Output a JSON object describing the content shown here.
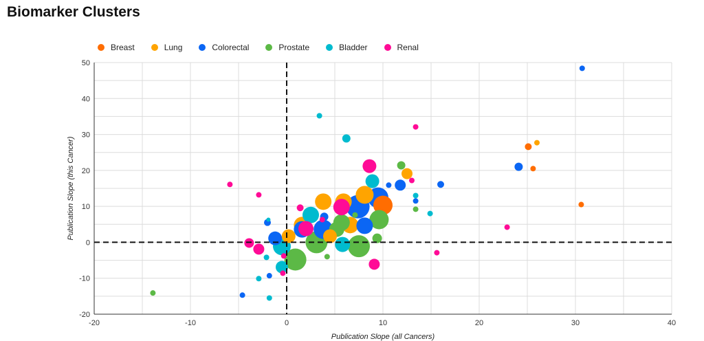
{
  "chart_data": {
    "type": "scatter",
    "title": "Biomarker Clusters",
    "xlabel": "Publication Slope (all Cancers)",
    "ylabel": "Publication Slope (this Cancer)",
    "xlim": [
      -20,
      40
    ],
    "ylim": [
      -20,
      50
    ],
    "xticks": [
      -20,
      -10,
      0,
      10,
      20,
      30,
      40
    ],
    "yticks": [
      -20,
      -10,
      0,
      10,
      20,
      30,
      40,
      50
    ],
    "grid": true,
    "legend_position": "top-left",
    "reference_lines": {
      "x": 0,
      "y": 0,
      "style": "dashed"
    },
    "series": [
      {
        "name": "Breast",
        "color": "#ff6d01",
        "points": [
          {
            "x": 25.1,
            "y": 26.6,
            "size": 5
          },
          {
            "x": 25.6,
            "y": 20.5,
            "size": 4
          },
          {
            "x": 30.6,
            "y": 10.5,
            "size": 4
          },
          {
            "x": 10.0,
            "y": 10.3,
            "size": 14
          }
        ]
      },
      {
        "name": "Lung",
        "color": "#ffa400",
        "points": [
          {
            "x": 26.0,
            "y": 27.7,
            "size": 4
          },
          {
            "x": 12.5,
            "y": 19.1,
            "size": 8
          },
          {
            "x": 8.1,
            "y": 13.2,
            "size": 13
          },
          {
            "x": 5.9,
            "y": 11.3,
            "size": 12
          },
          {
            "x": 3.8,
            "y": 11.3,
            "size": 12
          },
          {
            "x": 6.6,
            "y": 4.8,
            "size": 12
          },
          {
            "x": 1.6,
            "y": 4.8,
            "size": 12
          },
          {
            "x": 4.5,
            "y": 1.7,
            "size": 10
          },
          {
            "x": 0.2,
            "y": 1.7,
            "size": 10
          }
        ]
      },
      {
        "name": "Colorectal",
        "color": "#0b66f4",
        "points": [
          {
            "x": 30.7,
            "y": 48.4,
            "size": 4
          },
          {
            "x": 24.1,
            "y": 21.0,
            "size": 6
          },
          {
            "x": 16.0,
            "y": 16.1,
            "size": 5
          },
          {
            "x": 11.8,
            "y": 15.9,
            "size": 8
          },
          {
            "x": 10.6,
            "y": 15.9,
            "size": 4
          },
          {
            "x": 13.4,
            "y": 11.5,
            "size": 4
          },
          {
            "x": 9.5,
            "y": 12.4,
            "size": 15
          },
          {
            "x": 7.4,
            "y": 9.9,
            "size": 17
          },
          {
            "x": 8.1,
            "y": 4.6,
            "size": 12
          },
          {
            "x": 3.9,
            "y": 7.1,
            "size": 6
          },
          {
            "x": 1.6,
            "y": 3.6,
            "size": 12
          },
          {
            "x": 3.8,
            "y": 3.6,
            "size": 14
          },
          {
            "x": -2.0,
            "y": 5.5,
            "size": 5
          },
          {
            "x": -1.2,
            "y": 1.1,
            "size": 10
          },
          {
            "x": -1.8,
            "y": -9.3,
            "size": 4
          },
          {
            "x": -4.6,
            "y": -14.7,
            "size": 4
          }
        ]
      },
      {
        "name": "Prostate",
        "color": "#5cb946",
        "points": [
          {
            "x": 11.9,
            "y": 21.4,
            "size": 6
          },
          {
            "x": 13.4,
            "y": 9.2,
            "size": 4
          },
          {
            "x": 9.6,
            "y": 6.3,
            "size": 14
          },
          {
            "x": 5.7,
            "y": 5.5,
            "size": 12
          },
          {
            "x": 5.2,
            "y": 3.6,
            "size": 11
          },
          {
            "x": 7.1,
            "y": 7.6,
            "size": 4
          },
          {
            "x": 3.1,
            "y": 0.0,
            "size": 16
          },
          {
            "x": 7.5,
            "y": -1.1,
            "size": 16
          },
          {
            "x": 9.4,
            "y": 1.1,
            "size": 7
          },
          {
            "x": 4.2,
            "y": -4.0,
            "size": 4
          },
          {
            "x": 0.9,
            "y": -4.8,
            "size": 16
          },
          {
            "x": -13.9,
            "y": -14.1,
            "size": 4
          }
        ]
      },
      {
        "name": "Bladder",
        "color": "#00bbcf",
        "points": [
          {
            "x": 3.4,
            "y": 35.2,
            "size": 4
          },
          {
            "x": 6.2,
            "y": 28.9,
            "size": 6
          },
          {
            "x": 13.4,
            "y": 13.0,
            "size": 4
          },
          {
            "x": 14.9,
            "y": 8.0,
            "size": 4
          },
          {
            "x": 8.9,
            "y": 17.0,
            "size": 10
          },
          {
            "x": 2.5,
            "y": 7.6,
            "size": 12
          },
          {
            "x": 5.8,
            "y": -0.6,
            "size": 11
          },
          {
            "x": -1.9,
            "y": 6.3,
            "size": 3
          },
          {
            "x": -0.5,
            "y": -1.1,
            "size": 13
          },
          {
            "x": -2.1,
            "y": -4.2,
            "size": 4
          },
          {
            "x": -0.5,
            "y": -6.9,
            "size": 9
          },
          {
            "x": -2.9,
            "y": -10.1,
            "size": 4
          },
          {
            "x": -1.8,
            "y": -15.5,
            "size": 4
          }
        ]
      },
      {
        "name": "Renal",
        "color": "#ff0b96",
        "points": [
          {
            "x": 13.4,
            "y": 32.1,
            "size": 4
          },
          {
            "x": 13.0,
            "y": 17.2,
            "size": 4
          },
          {
            "x": 22.9,
            "y": 4.2,
            "size": 4
          },
          {
            "x": 15.6,
            "y": -2.9,
            "size": 4
          },
          {
            "x": 8.6,
            "y": 21.2,
            "size": 10
          },
          {
            "x": 5.7,
            "y": 9.8,
            "size": 12
          },
          {
            "x": 3.7,
            "y": 6.3,
            "size": 4
          },
          {
            "x": 1.4,
            "y": 9.6,
            "size": 5
          },
          {
            "x": 2.0,
            "y": 3.8,
            "size": 11
          },
          {
            "x": 9.1,
            "y": -6.1,
            "size": 8
          },
          {
            "x": -5.9,
            "y": 16.1,
            "size": 4
          },
          {
            "x": -2.9,
            "y": 13.2,
            "size": 4
          },
          {
            "x": -3.9,
            "y": -0.2,
            "size": 7
          },
          {
            "x": -2.9,
            "y": -1.9,
            "size": 8
          },
          {
            "x": -0.3,
            "y": -3.8,
            "size": 4
          },
          {
            "x": -0.4,
            "y": -8.6,
            "size": 4
          }
        ]
      }
    ]
  }
}
